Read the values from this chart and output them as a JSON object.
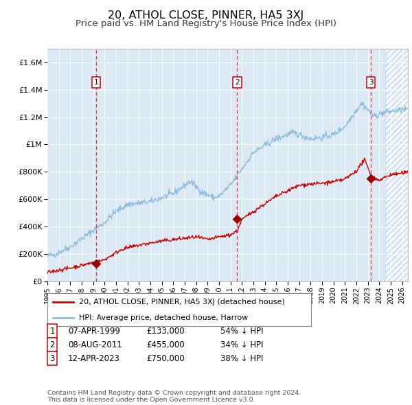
{
  "title": "20, ATHOL CLOSE, PINNER, HA5 3XJ",
  "subtitle": "Price paid vs. HM Land Registry's House Price Index (HPI)",
  "title_fontsize": 11.5,
  "subtitle_fontsize": 9.5,
  "ylim": [
    0,
    1700000
  ],
  "xlim_start": 1995.0,
  "xlim_end": 2026.5,
  "bg_color": "#dce9f5",
  "hatch_color": "#b8cfe0",
  "grid_color": "#ffffff",
  "red_line_color": "#cc0000",
  "blue_line_color": "#88bbdd",
  "sale_marker_color": "#990000",
  "dashed_line_color": "#dd3333",
  "box_edge_color": "#cc0000",
  "legend_label_red": "20, ATHOL CLOSE, PINNER, HA5 3XJ (detached house)",
  "legend_label_blue": "HPI: Average price, detached house, Harrow",
  "transactions": [
    {
      "label": "1",
      "date": 1999.27,
      "price": 133000,
      "pct": "54%",
      "date_str": "07-APR-1999"
    },
    {
      "label": "2",
      "date": 2011.59,
      "price": 455000,
      "pct": "34%",
      "date_str": "08-AUG-2011"
    },
    {
      "label": "3",
      "date": 2023.27,
      "price": 750000,
      "pct": "38%",
      "date_str": "12-APR-2023"
    }
  ],
  "yticks": [
    0,
    200000,
    400000,
    600000,
    800000,
    1000000,
    1200000,
    1400000,
    1600000
  ],
  "ytick_labels": [
    "£0",
    "£200K",
    "£400K",
    "£600K",
    "£800K",
    "£1M",
    "£1.2M",
    "£1.4M",
    "£1.6M"
  ],
  "xticks": [
    1995,
    1996,
    1997,
    1998,
    1999,
    2000,
    2001,
    2002,
    2003,
    2004,
    2005,
    2006,
    2007,
    2008,
    2009,
    2010,
    2011,
    2012,
    2013,
    2014,
    2015,
    2016,
    2017,
    2018,
    2019,
    2020,
    2021,
    2022,
    2023,
    2024,
    2025,
    2026
  ],
  "footer": "Contains HM Land Registry data © Crown copyright and database right 2024.\nThis data is licensed under the Open Government Licence v3.0.",
  "hatch_start": 2024.5
}
